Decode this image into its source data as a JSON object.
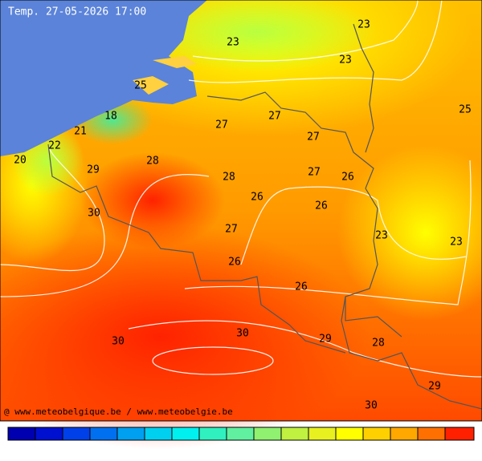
{
  "title": "Temp. 27-05-2026 17:00",
  "labels": [
    23,
    23,
    23,
    25,
    25,
    18,
    21,
    22,
    20,
    29,
    28,
    28,
    27,
    27,
    27,
    27,
    27,
    26,
    26,
    26,
    26,
    26,
    30,
    30,
    30,
    30,
    23,
    23,
    29,
    29,
    28
  ],
  "footer": "@ www.meteobelgique.be / www.meteobelgie.be"
}
